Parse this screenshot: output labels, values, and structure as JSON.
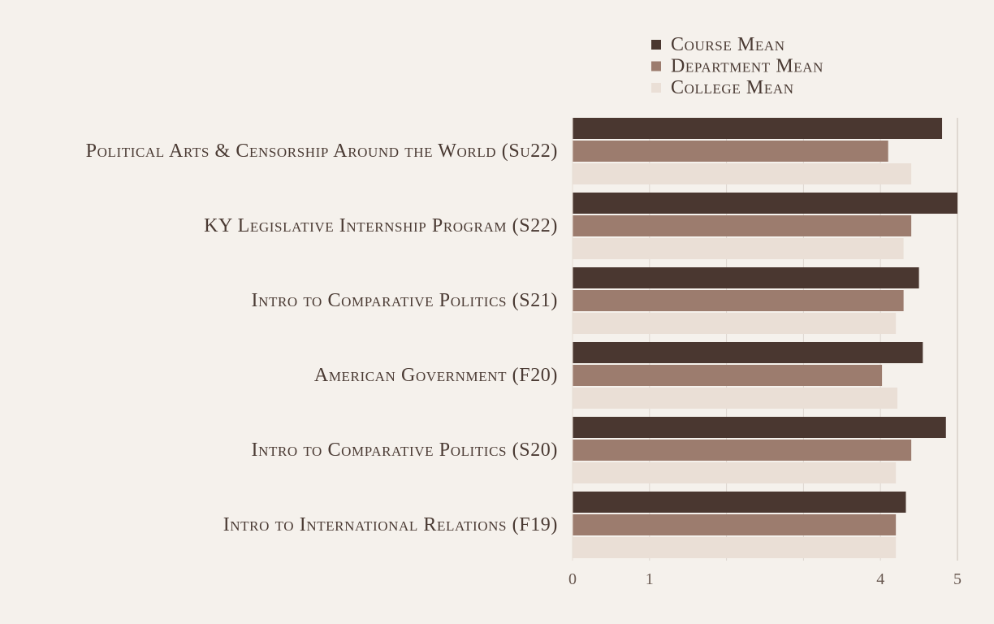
{
  "colors": {
    "background": "#f5f1ec",
    "course": "#4a3730",
    "department": "#9c7c6e",
    "college": "#eadfd6",
    "gridline": "#ddd6cf",
    "text": "#4a3a33"
  },
  "chart_data": {
    "type": "bar",
    "orientation": "horizontal",
    "title": "",
    "xlabel": "",
    "ylabel": "",
    "xlim": [
      0,
      5
    ],
    "xticks": [
      0,
      1,
      4,
      5
    ],
    "grid": true,
    "legend_position": "top-right",
    "categories": [
      "Political Arts & Censorship Around the World (Su22)",
      "KY Legislative Internship Program (S22)",
      "Intro to Comparative Politics (S21)",
      "American Government (F20)",
      "Intro to Comparative Politics (S20)",
      "Intro to International Relations (F19)"
    ],
    "series": [
      {
        "name": "Course Mean",
        "color": "#4a3730",
        "values": [
          4.8,
          5.0,
          4.5,
          4.55,
          4.85,
          4.33
        ]
      },
      {
        "name": "Department Mean",
        "color": "#9c7c6e",
        "values": [
          4.1,
          4.4,
          4.3,
          4.02,
          4.4,
          4.2
        ]
      },
      {
        "name": "College Mean",
        "color": "#eadfd6",
        "values": [
          4.4,
          4.3,
          4.2,
          4.22,
          4.2,
          4.2
        ]
      }
    ]
  }
}
